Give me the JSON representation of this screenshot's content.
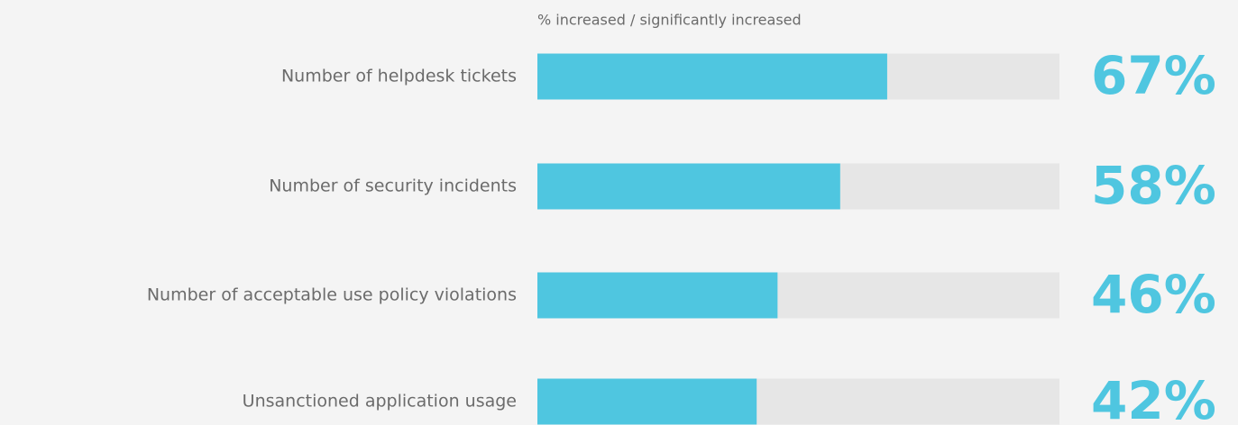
{
  "chart_data": {
    "type": "bar",
    "orientation": "horizontal",
    "subtitle": "% increased / significantly increased",
    "categories": [
      "Number of helpdesk tickets",
      "Number of security incidents",
      "Number of acceptable use policy violations",
      "Unsanctioned application usage"
    ],
    "values": [
      67,
      58,
      46,
      42
    ],
    "value_labels": [
      "67%",
      "58%",
      "46%",
      "42%"
    ],
    "color": "#4fc6e0",
    "xlim": [
      0,
      100
    ]
  }
}
